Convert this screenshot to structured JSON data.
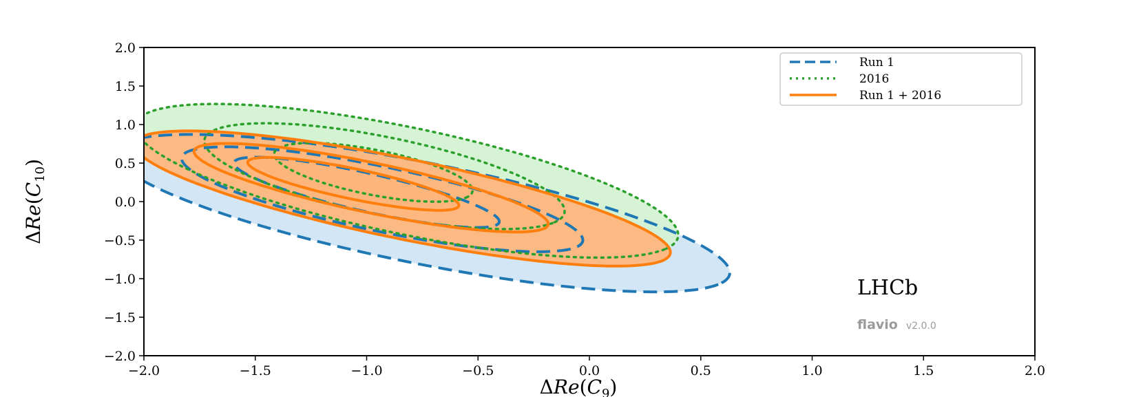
{
  "chart_data": {
    "type": "contour",
    "xlabel": "ΔRe(C9)",
    "xlabel_parts": {
      "prefix": "Δ",
      "script": "Re",
      "open": "(",
      "sym": "C",
      "sub": "9",
      "close": ")"
    },
    "ylabel": "ΔRe(C10)",
    "ylabel_parts": {
      "prefix": "Δ",
      "script": "Re",
      "open": "(",
      "sym": "C",
      "sub": "10",
      "close": ")"
    },
    "xlim": [
      -2.0,
      2.0
    ],
    "ylim": [
      -2.0,
      2.0
    ],
    "xticks": [
      -2.0,
      -1.5,
      -1.0,
      -0.5,
      0.0,
      0.5,
      1.0,
      1.5,
      2.0
    ],
    "yticks": [
      -2.0,
      -1.5,
      -1.0,
      -0.5,
      0.0,
      0.5,
      1.0,
      1.5,
      2.0
    ],
    "xtick_labels": [
      "−2.0",
      "−1.5",
      "−1.0",
      "−0.5",
      "0.0",
      "0.5",
      "1.0",
      "1.5",
      "2.0"
    ],
    "ytick_labels": [
      "−2.0",
      "−1.5",
      "−1.0",
      "−0.5",
      "0.0",
      "0.5",
      "1.0",
      "1.5",
      "2.0"
    ],
    "grid": false,
    "legend_position": "top-right",
    "series": [
      {
        "name": "Run 1",
        "color": "#1f77b4",
        "line_style": "dashed",
        "contours": [
          {
            "level": 1,
            "center": [
              -1.0,
              0.12
            ],
            "rx": 0.72,
            "ry": 0.21,
            "angle_deg": -36
          },
          {
            "level": 2,
            "center": [
              -0.93,
              0.03
            ],
            "rx": 1.07,
            "ry": 0.36,
            "angle_deg": -35
          },
          {
            "level": 3,
            "center": [
              -0.75,
              -0.15
            ],
            "rx": 1.62,
            "ry": 0.57,
            "angle_deg": -34
          }
        ]
      },
      {
        "name": "2016",
        "color": "#2ca02c",
        "line_style": "dotted",
        "contours": [
          {
            "level": 1,
            "center": [
              -0.97,
              0.38
            ],
            "rx": 0.53,
            "ry": 0.25,
            "angle_deg": -38
          },
          {
            "level": 2,
            "center": [
              -0.92,
              0.33
            ],
            "rx": 0.97,
            "ry": 0.43,
            "angle_deg": -38
          },
          {
            "level": 3,
            "center": [
              -0.82,
              0.27
            ],
            "rx": 1.46,
            "ry": 0.59,
            "angle_deg": -37
          }
        ]
      },
      {
        "name": "Run 1 + 2016",
        "color": "#ff7f0e",
        "line_style": "solid",
        "contours": [
          {
            "level": 1,
            "center": [
              -1.06,
              0.23
            ],
            "rx": 0.56,
            "ry": 0.17,
            "angle_deg": -34
          },
          {
            "level": 2,
            "center": [
              -0.98,
              0.18
            ],
            "rx": 0.94,
            "ry": 0.28,
            "angle_deg": -34
          },
          {
            "level": 3,
            "center": [
              -0.84,
              0.04
            ],
            "rx": 1.42,
            "ry": 0.45,
            "angle_deg": -34
          }
        ]
      }
    ],
    "annotations": {
      "experiment": "LHCb",
      "brand": "flavio",
      "version": "v2.0.0"
    }
  },
  "colors": {
    "run1": "#1f77b4",
    "y2016": "#2ca02c",
    "combined": "#ff7f0e",
    "run1_fill": "#d0e5f6",
    "y2016_fill": "#d1f2d1",
    "combined_fill": "#ffb47a"
  }
}
